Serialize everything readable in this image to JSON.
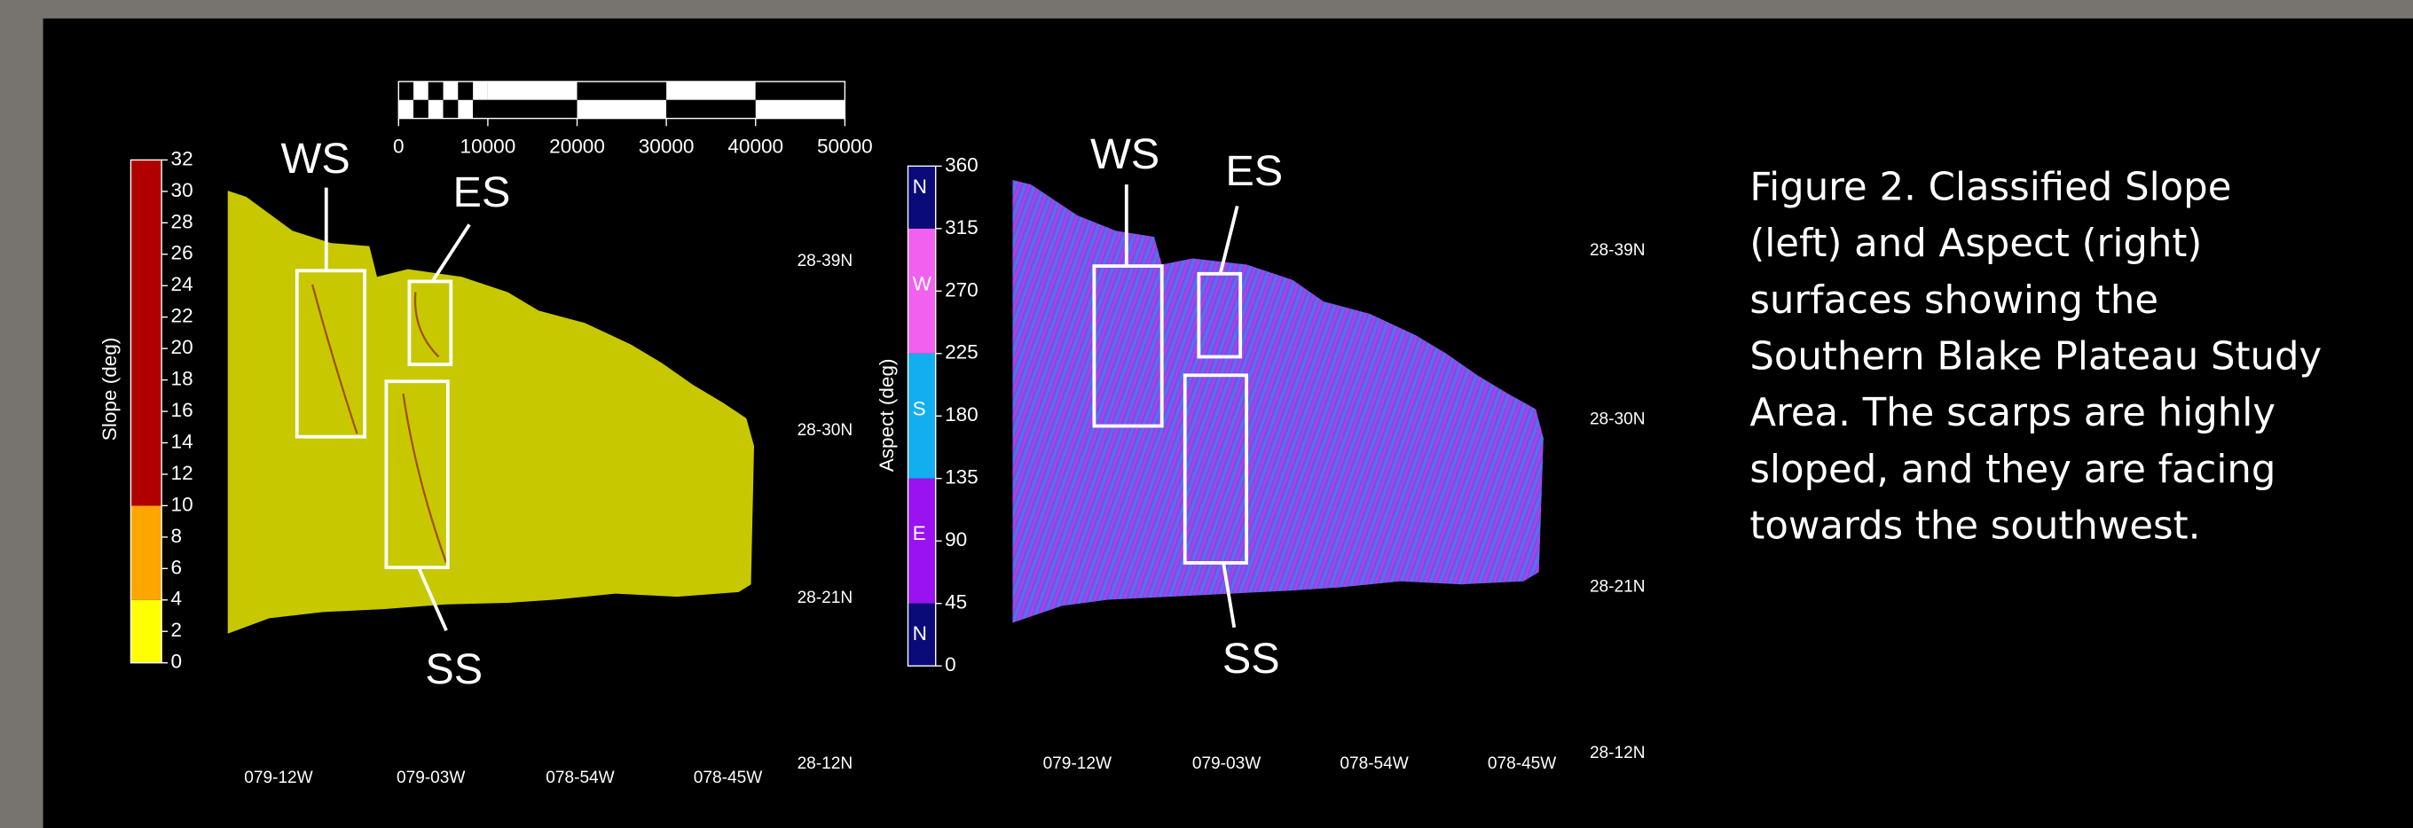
{
  "scale_bar": {
    "lim": [
      0,
      50000
    ],
    "ticks": [
      0,
      10000,
      20000,
      30000,
      40000,
      50000
    ]
  },
  "slope_panel": {
    "colorbar": {
      "label": "Slope (deg)",
      "lim": [
        0,
        32
      ],
      "ticks": [
        0,
        2,
        4,
        6,
        8,
        10,
        12,
        14,
        16,
        18,
        20,
        22,
        24,
        26,
        28,
        30,
        32
      ],
      "classes": [
        {
          "from": 0,
          "to": 4,
          "color": "#ffff00"
        },
        {
          "from": 4,
          "to": 10,
          "color": "#ffa500"
        },
        {
          "from": 10,
          "to": 32,
          "color": "#b00000"
        }
      ]
    },
    "lat_labels": [
      "28-39N",
      "28-30N",
      "28-21N",
      "28-12N"
    ],
    "lon_labels": [
      "079-12W",
      "079-03W",
      "078-54W",
      "078-45W"
    ],
    "features": [
      "WS",
      "ES",
      "SS"
    ]
  },
  "aspect_panel": {
    "colorbar": {
      "label": "Aspect (deg)",
      "lim": [
        0,
        360
      ],
      "ticks": [
        0,
        45,
        90,
        135,
        180,
        225,
        270,
        315,
        360
      ],
      "classes": [
        {
          "from": 0,
          "to": 45,
          "color": "#0a0a78",
          "label": "N"
        },
        {
          "from": 45,
          "to": 135,
          "color": "#9a12f0",
          "label": "E"
        },
        {
          "from": 135,
          "to": 225,
          "color": "#12aef0",
          "label": "S"
        },
        {
          "from": 225,
          "to": 315,
          "color": "#f260f0",
          "label": "W"
        },
        {
          "from": 315,
          "to": 360,
          "color": "#0a0a78",
          "label": "N"
        }
      ]
    },
    "lat_labels": [
      "28-39N",
      "28-30N",
      "28-21N",
      "28-12N"
    ],
    "lon_labels": [
      "079-12W",
      "079-03W",
      "078-54W",
      "078-45W"
    ],
    "features": [
      "WS",
      "ES",
      "SS"
    ]
  },
  "caption": [
    "Figure 2. Classified Slope",
    "(left) and Aspect (right)",
    "surfaces showing the",
    "Southern Blake Plateau Study",
    "Area. The scarps are highly",
    "sloped, and they are facing",
    "towards the southwest."
  ]
}
